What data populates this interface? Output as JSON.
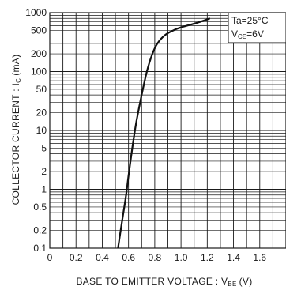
{
  "chart_data": {
    "type": "line",
    "title": "",
    "xlabel": "BASE TO EMITTER VOLTAGE : V",
    "xlabel_sub": "BE",
    "xlabel_unit": "(V)",
    "ylabel": "COLLECTOR CURRENT : I",
    "ylabel_sub": "C",
    "ylabel_unit": "(mA)",
    "x_scale": "linear",
    "y_scale": "log",
    "xlim": [
      0,
      1.8
    ],
    "ylim": [
      0.1,
      1000
    ],
    "x_ticks": [
      "0",
      "0.2",
      "0.4",
      "0.6",
      "0.8",
      "1.0",
      "1.2",
      "1.4",
      "1.6"
    ],
    "x_tick_values": [
      0,
      0.2,
      0.4,
      0.6,
      0.8,
      1.0,
      1.2,
      1.4,
      1.6
    ],
    "y_ticks": [
      "1000",
      "500",
      "200",
      "100",
      "50",
      "20",
      "10",
      "5",
      "2",
      "1",
      "0.5",
      "0.2",
      "0.1"
    ],
    "y_tick_values": [
      1000,
      500,
      200,
      100,
      50,
      20,
      10,
      5,
      2,
      1,
      0.5,
      0.2,
      0.1
    ],
    "grid": true,
    "annotation": {
      "line1": "Ta=25°C",
      "line2_prefix": "V",
      "line2_sub": "CE",
      "line2_suffix": "=6V",
      "placement": "top-right"
    },
    "series": [
      {
        "x": [
          0.52,
          0.55,
          0.58,
          0.6,
          0.63,
          0.66,
          0.7,
          0.74,
          0.78,
          0.82,
          0.88,
          0.95,
          1.02,
          1.1,
          1.18,
          1.22
        ],
        "y": [
          0.1,
          0.28,
          0.75,
          1.7,
          5.2,
          14,
          40,
          100,
          195,
          300,
          420,
          510,
          580,
          650,
          740,
          800
        ]
      }
    ]
  }
}
